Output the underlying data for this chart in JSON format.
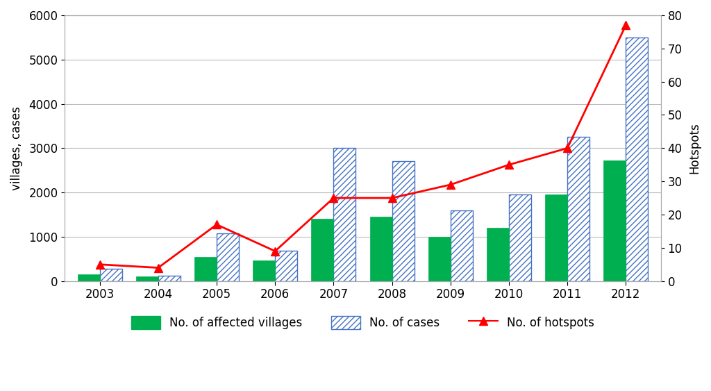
{
  "years": [
    2003,
    2004,
    2005,
    2006,
    2007,
    2008,
    2009,
    2010,
    2011,
    2012
  ],
  "villages": [
    150,
    100,
    550,
    470,
    1400,
    1450,
    1000,
    1200,
    1950,
    2720
  ],
  "cases": [
    270,
    120,
    1080,
    680,
    3000,
    2700,
    1600,
    1950,
    3250,
    5500
  ],
  "hotspots": [
    5,
    4,
    17,
    9,
    25,
    25,
    29,
    35,
    40,
    77
  ],
  "village_color": "#00b050",
  "cases_hatch_color": "#4472c4",
  "hotspot_color": "#ff0000",
  "ylabel_left": "villages, cases",
  "ylabel_right": "Hotspots",
  "ylim_left": [
    0,
    6000
  ],
  "ylim_right": [
    0,
    80
  ],
  "yticks_left": [
    0,
    1000,
    2000,
    3000,
    4000,
    5000,
    6000
  ],
  "yticks_right": [
    0,
    10,
    20,
    30,
    40,
    50,
    60,
    70,
    80
  ],
  "legend_villages": "No. of affected villages",
  "legend_cases": "No. of cases",
  "legend_hotspots": "No. of hotspots",
  "background_color": "#ffffff",
  "bar_width": 0.38
}
